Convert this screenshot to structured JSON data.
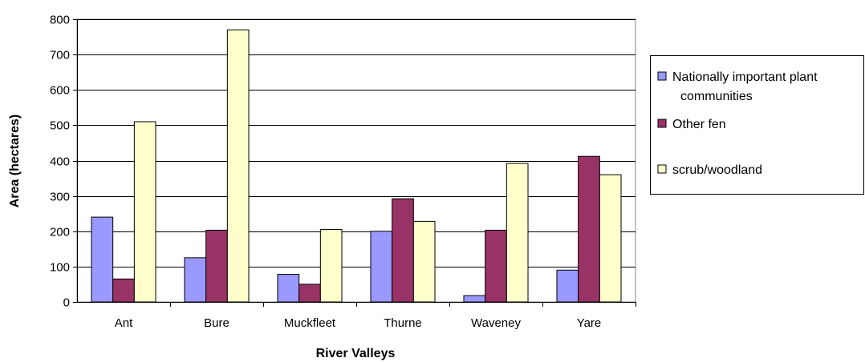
{
  "chart_data": {
    "type": "bar",
    "title": "",
    "xlabel": "River Valleys",
    "ylabel": "Area (hectares)",
    "ylim": [
      0,
      800
    ],
    "yticks": [
      0,
      100,
      200,
      300,
      400,
      500,
      600,
      700,
      800
    ],
    "grid": "horizontal",
    "legend_position": "right",
    "categories": [
      "Ant",
      "Bure",
      "Muckfleet",
      "Thurne",
      "Waveney",
      "Yare"
    ],
    "series": [
      {
        "name": "Nationally important plant communities",
        "legend_lines": [
          "Nationally important plant",
          "communities"
        ],
        "color": "#9999ff",
        "values": [
          240,
          125,
          78,
          200,
          18,
          90
        ]
      },
      {
        "name": "Other fen",
        "legend_lines": [
          "Other fen"
        ],
        "color": "#993366",
        "values": [
          65,
          203,
          50,
          292,
          203,
          412
        ]
      },
      {
        "name": "scrub/woodland",
        "legend_lines": [
          "scrub/woodland"
        ],
        "color": "#ffffcc",
        "values": [
          510,
          770,
          205,
          228,
          392,
          360
        ]
      }
    ]
  }
}
